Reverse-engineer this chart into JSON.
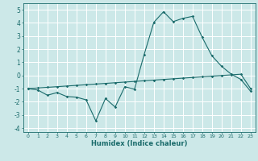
{
  "title": "",
  "xlabel": "Humidex (Indice chaleur)",
  "ylabel": "",
  "background_color": "#cce8e8",
  "grid_color": "#ffffff",
  "line_color": "#1a6b6b",
  "xlim": [
    -0.5,
    23.5
  ],
  "ylim": [
    -4.3,
    5.5
  ],
  "xticks": [
    0,
    1,
    2,
    3,
    4,
    5,
    6,
    7,
    8,
    9,
    10,
    11,
    12,
    13,
    14,
    15,
    16,
    17,
    18,
    19,
    20,
    21,
    22,
    23
  ],
  "yticks": [
    -4,
    -3,
    -2,
    -1,
    0,
    1,
    2,
    3,
    4,
    5
  ],
  "line1_x": [
    0,
    1,
    2,
    3,
    4,
    5,
    6,
    7,
    8,
    9,
    10,
    11,
    12,
    13,
    14,
    15,
    16,
    17,
    18,
    19,
    20,
    21,
    22,
    23
  ],
  "line1_y": [
    -1.0,
    -1.1,
    -1.5,
    -1.3,
    -1.6,
    -1.65,
    -1.85,
    -3.45,
    -1.75,
    -2.4,
    -0.85,
    -1.05,
    1.6,
    4.05,
    4.85,
    4.1,
    4.35,
    4.5,
    2.9,
    1.5,
    0.7,
    0.1,
    -0.3,
    -1.2
  ],
  "line2_x": [
    0,
    1,
    2,
    3,
    4,
    5,
    6,
    7,
    8,
    9,
    10,
    11,
    12,
    13,
    14,
    15,
    16,
    17,
    18,
    19,
    20,
    21,
    22,
    23
  ],
  "line2_y": [
    -1.0,
    -0.95,
    -0.9,
    -0.85,
    -0.8,
    -0.75,
    -0.7,
    -0.65,
    -0.6,
    -0.55,
    -0.5,
    -0.45,
    -0.4,
    -0.35,
    -0.3,
    -0.25,
    -0.2,
    -0.15,
    -0.1,
    -0.05,
    0.0,
    0.05,
    0.1,
    -1.0
  ],
  "xlabel_fontsize": 6.0,
  "tick_fontsize_x": 4.5,
  "tick_fontsize_y": 5.5
}
